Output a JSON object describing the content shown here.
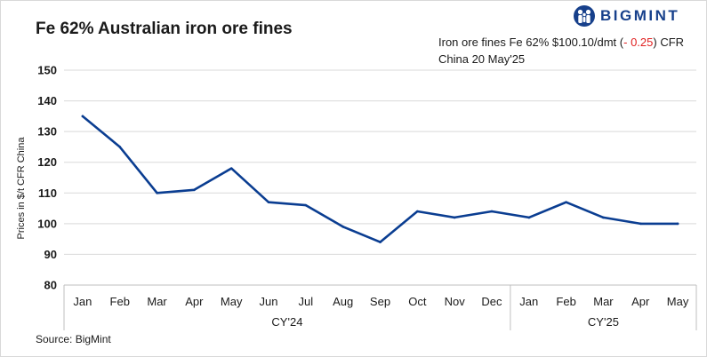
{
  "header": {
    "title": "Fe 62% Australian iron ore fines",
    "brand": "BIGMINT",
    "note_prefix": "Iron ore fines Fe 62% $100.10/dmt (",
    "note_change": "- 0.25",
    "note_suffix": ") CFR",
    "note_line2": "China 20 May'25"
  },
  "footer": {
    "source": "Source: BigMint"
  },
  "colors": {
    "line": "#0a3d91",
    "brand": "#17408b",
    "negative": "#e02020",
    "grid": "#d9d9d9"
  },
  "logo_icon": "bigmint-people-icon",
  "chart_data": {
    "type": "line",
    "ylabel": "Prices in $/t CFR China",
    "ylim": [
      80,
      150
    ],
    "yticks": [
      80,
      90,
      100,
      110,
      120,
      130,
      140,
      150
    ],
    "grid": "horizontal",
    "categories": [
      "Jan",
      "Feb",
      "Mar",
      "Apr",
      "May",
      "Jun",
      "Jul",
      "Aug",
      "Sep",
      "Oct",
      "Nov",
      "Dec",
      "Jan",
      "Feb",
      "Mar",
      "Apr",
      "May"
    ],
    "groups": [
      {
        "label": "CY'24",
        "count": 12
      },
      {
        "label": "CY'25",
        "count": 5
      }
    ],
    "series": [
      {
        "values": [
          135,
          125,
          110,
          111,
          118,
          107,
          106,
          99,
          94,
          104,
          102,
          104,
          102,
          107,
          102,
          100,
          100
        ]
      }
    ]
  }
}
